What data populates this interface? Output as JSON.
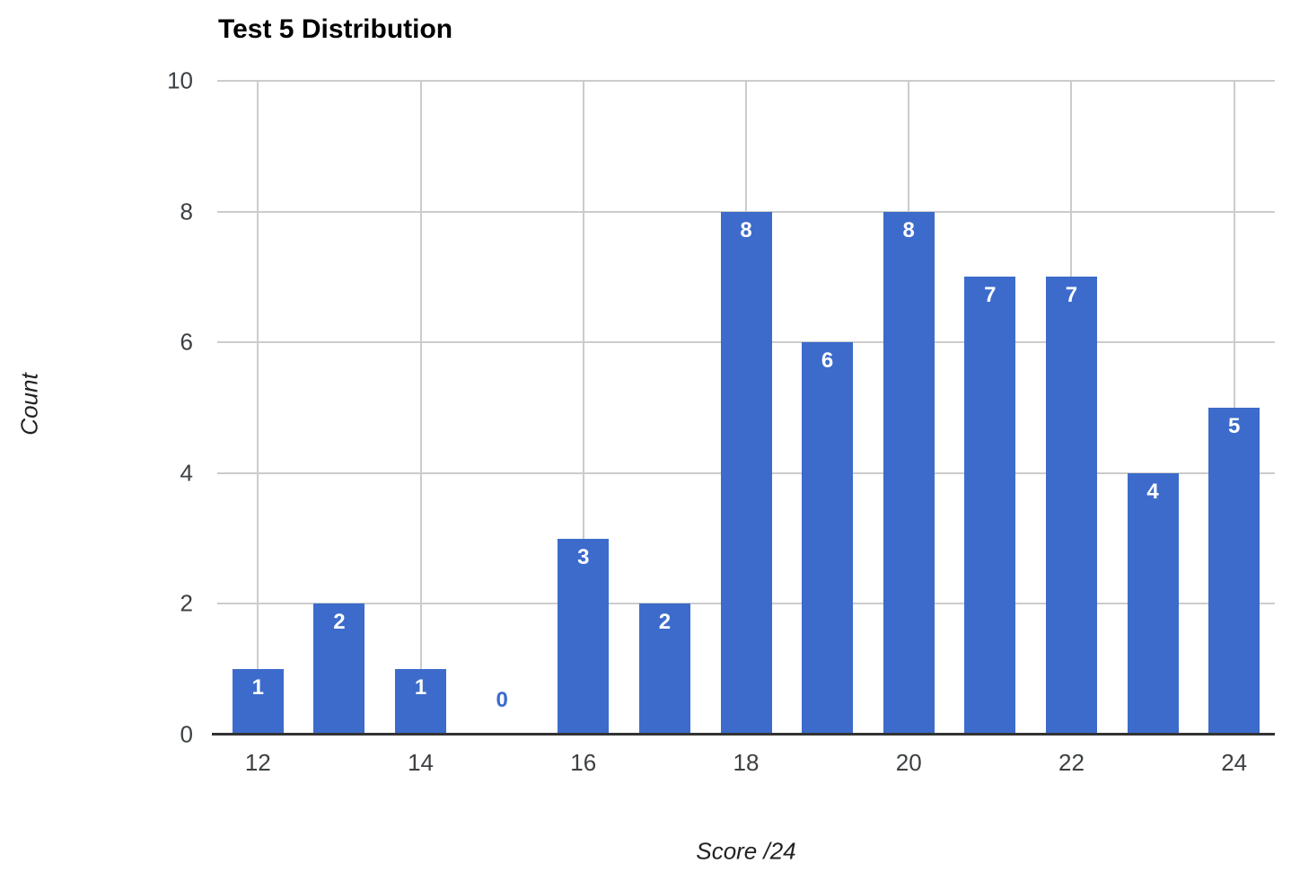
{
  "chart": {
    "title": "Test 5 Distribution",
    "y_axis_title": "Count",
    "x_axis_title": "Score /24",
    "colors": {
      "bar": "#3c6bcb",
      "gridline": "#cccccc",
      "baseline": "#333333",
      "tick_label": "#3c4043",
      "bar_label_inside": "#ffffff",
      "bar_label_zero": "#3c6bcb",
      "title": "#000000"
    }
  },
  "chart_data": {
    "type": "bar",
    "title": "Test 5 Distribution",
    "xlabel": "Score /24",
    "ylabel": "Count",
    "categories": [
      12,
      13,
      14,
      15,
      16,
      17,
      18,
      19,
      20,
      21,
      22,
      23,
      24
    ],
    "values": [
      1,
      2,
      1,
      0,
      3,
      2,
      8,
      6,
      8,
      7,
      7,
      4,
      5
    ],
    "ylim": [
      0,
      10
    ],
    "y_ticks": [
      0,
      2,
      4,
      6,
      8,
      10
    ],
    "x_tick_labels": [
      12,
      14,
      16,
      18,
      20,
      22,
      24
    ],
    "grid": true,
    "legend": "none",
    "data_labels": true
  }
}
